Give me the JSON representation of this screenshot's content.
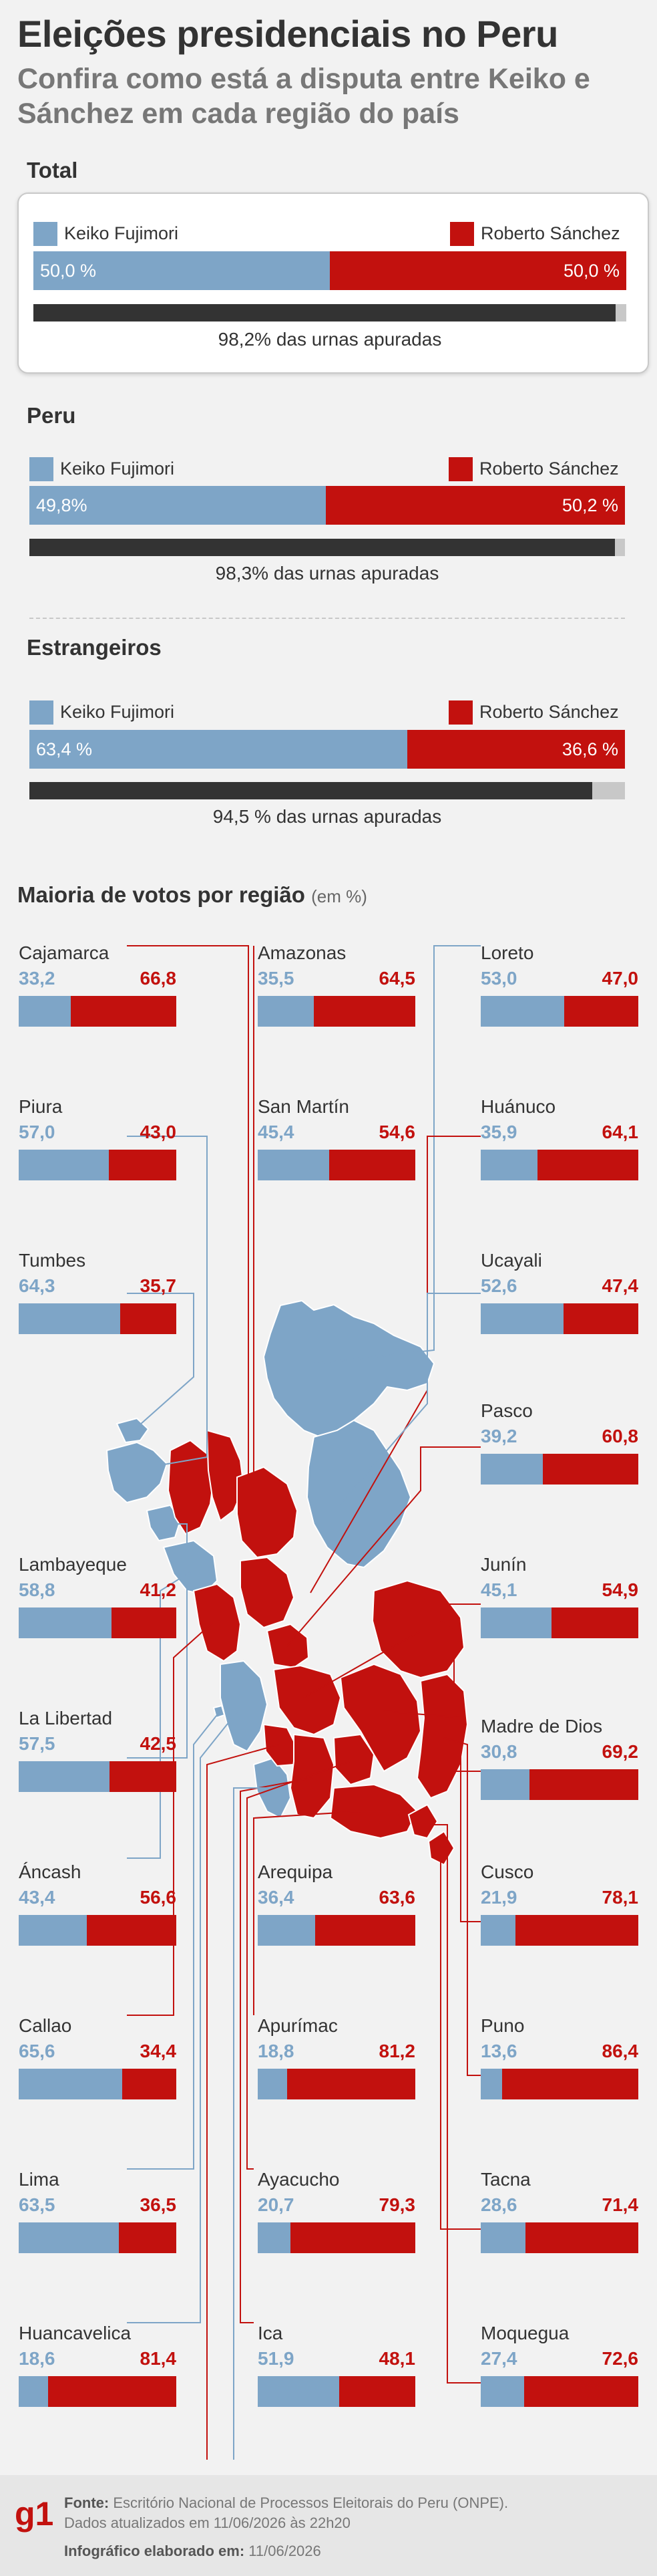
{
  "title": "Eleições presidenciais no Peru",
  "subtitle": "Confira como está a disputa entre Keiko e Sánchez em cada região do país",
  "legend": {
    "keiko": "Keiko Fujimori",
    "sanchez": "Roberto Sánchez"
  },
  "colors": {
    "keiko": "#7ea5c7",
    "sanchez": "#c2110e",
    "urn_fill": "#333333",
    "urn_rest": "#c8c8c8"
  },
  "sections": [
    {
      "title": "Total",
      "keiko_label": "50,0 %",
      "sanchez_label": "50,0 %",
      "keiko": 50.0,
      "sanchez": 50.0,
      "urn_pct": 98.2,
      "urn_text": "98,2% das urnas apuradas"
    },
    {
      "title": "Peru",
      "keiko_label": "49,8%",
      "sanchez_label": "50,2 %",
      "keiko": 49.8,
      "sanchez": 50.2,
      "urn_pct": 98.3,
      "urn_text": "98,3% das urnas apuradas"
    },
    {
      "title": "Estrangeiros",
      "keiko_label": "63,4 %",
      "sanchez_label": "36,6 %",
      "keiko": 63.4,
      "sanchez": 36.6,
      "urn_pct": 94.5,
      "urn_text": "94,5 % das urnas apuradas"
    }
  ],
  "regions_title": "Maioria de votos por região",
  "regions_unit": "(em %)",
  "chart_data": {
    "type": "bar",
    "title": "Maioria de votos por região",
    "unit": "%",
    "series": [
      {
        "name": "Keiko Fujimori",
        "values": [
          33.2,
          35.5,
          53.0,
          57.0,
          45.4,
          35.9,
          64.3,
          52.6,
          39.2,
          58.8,
          45.1,
          57.5,
          30.8,
          43.4,
          36.4,
          21.9,
          65.6,
          18.8,
          13.6,
          63.5,
          20.7,
          28.6,
          18.6,
          51.9,
          27.4
        ]
      },
      {
        "name": "Roberto Sánchez",
        "values": [
          66.8,
          64.5,
          47.0,
          43.0,
          54.6,
          64.1,
          35.7,
          47.4,
          60.8,
          41.2,
          54.9,
          42.5,
          69.2,
          56.6,
          63.6,
          78.1,
          34.4,
          81.2,
          86.4,
          36.5,
          79.3,
          71.4,
          81.4,
          48.1,
          72.6
        ]
      }
    ],
    "regions": [
      {
        "name": "Cajamarca",
        "k": "33,2",
        "s": "66,8",
        "kv": 33.2
      },
      {
        "name": "Amazonas",
        "k": "35,5",
        "s": "64,5",
        "kv": 35.5
      },
      {
        "name": "Loreto",
        "k": "53,0",
        "s": "47,0",
        "kv": 53.0
      },
      {
        "name": "Piura",
        "k": "57,0",
        "s": "43,0",
        "kv": 57.0
      },
      {
        "name": "San Martín",
        "k": "45,4",
        "s": "54,6",
        "kv": 45.4
      },
      {
        "name": "Huánuco",
        "k": "35,9",
        "s": "64,1",
        "kv": 35.9
      },
      {
        "name": "Tumbes",
        "k": "64,3",
        "s": "35,7",
        "kv": 64.3
      },
      {
        "name": "Ucayali",
        "k": "52,6",
        "s": "47,4",
        "kv": 52.6
      },
      {
        "name": "Pasco",
        "k": "39,2",
        "s": "60,8",
        "kv": 39.2
      },
      {
        "name": "Lambayeque",
        "k": "58,8",
        "s": "41,2",
        "kv": 58.8
      },
      {
        "name": "Junín",
        "k": "45,1",
        "s": "54,9",
        "kv": 45.1
      },
      {
        "name": "La Libertad",
        "k": "57,5",
        "s": "42,5",
        "kv": 57.5
      },
      {
        "name": "Madre de Dios",
        "k": "30,8",
        "s": "69,2",
        "kv": 30.8
      },
      {
        "name": "Áncash",
        "k": "43,4",
        "s": "56,6",
        "kv": 43.4
      },
      {
        "name": "Arequipa",
        "k": "36,4",
        "s": "63,6",
        "kv": 36.4
      },
      {
        "name": "Cusco",
        "k": "21,9",
        "s": "78,1",
        "kv": 21.9
      },
      {
        "name": "Callao",
        "k": "65,6",
        "s": "34,4",
        "kv": 65.6
      },
      {
        "name": "Apurímac",
        "k": "18,8",
        "s": "81,2",
        "kv": 18.8
      },
      {
        "name": "Puno",
        "k": "13,6",
        "s": "86,4",
        "kv": 13.6
      },
      {
        "name": "Lima",
        "k": "63,5",
        "s": "36,5",
        "kv": 63.5
      },
      {
        "name": "Ayacucho",
        "k": "20,7",
        "s": "79,3",
        "kv": 20.7
      },
      {
        "name": "Tacna",
        "k": "28,6",
        "s": "71,4",
        "kv": 28.6
      },
      {
        "name": "Huancavelica",
        "k": "18,6",
        "s": "81,4",
        "kv": 18.6
      },
      {
        "name": "Ica",
        "k": "51,9",
        "s": "48,1",
        "kv": 51.9
      },
      {
        "name": "Moquegua",
        "k": "27,4",
        "s": "72,6",
        "kv": 27.4
      }
    ]
  },
  "footer": {
    "logo": "g1",
    "fonte_label": "Fonte:",
    "fonte_text": "Escritório Nacional de Processos Eleitorais do Peru (ONPE).",
    "updated": "Dados atualizados em 11/06/2026 às 22h20",
    "credit_label": "Infográfico elaborado em:",
    "credit_date": "11/06/2026"
  }
}
